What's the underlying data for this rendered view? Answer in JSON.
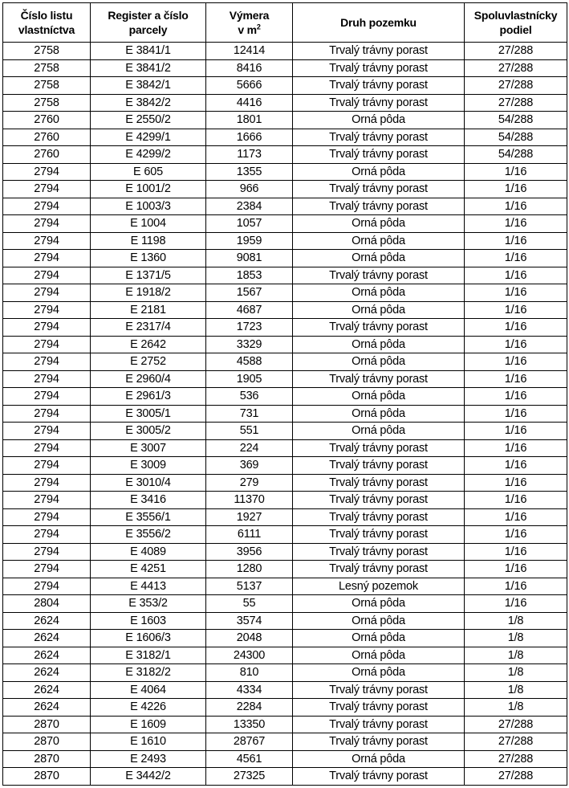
{
  "table": {
    "headers": {
      "c0_line1": "Číslo listu",
      "c0_line2": "vlastníctva",
      "c1_line1": "Register a číslo",
      "c1_line2": "parcely",
      "c2_line1": "Výmera",
      "c2_line2": "v m",
      "c2_sup": "2",
      "c3": "Druh pozemku",
      "c4_line1": "Spoluvlastnícky",
      "c4_line2": "podiel"
    },
    "rows": [
      [
        "2758",
        "E 3841/1",
        "12414",
        "Trvalý trávny porast",
        "27/288"
      ],
      [
        "2758",
        "E 3841/2",
        "8416",
        "Trvalý trávny porast",
        "27/288"
      ],
      [
        "2758",
        "E 3842/1",
        "5666",
        "Trvalý trávny porast",
        "27/288"
      ],
      [
        "2758",
        "E 3842/2",
        "4416",
        "Trvalý trávny porast",
        "27/288"
      ],
      [
        "2760",
        "E 2550/2",
        "1801",
        "Orná pôda",
        "54/288"
      ],
      [
        "2760",
        "E 4299/1",
        "1666",
        "Trvalý trávny porast",
        "54/288"
      ],
      [
        "2760",
        "E 4299/2",
        "1173",
        "Trvalý trávny porast",
        "54/288"
      ],
      [
        "2794",
        "E 605",
        "1355",
        "Orná pôda",
        "1/16"
      ],
      [
        "2794",
        "E 1001/2",
        "966",
        "Trvalý trávny porast",
        "1/16"
      ],
      [
        "2794",
        "E 1003/3",
        "2384",
        "Trvalý trávny porast",
        "1/16"
      ],
      [
        "2794",
        "E 1004",
        "1057",
        "Orná pôda",
        "1/16"
      ],
      [
        "2794",
        "E 1198",
        "1959",
        "Orná pôda",
        "1/16"
      ],
      [
        "2794",
        "E 1360",
        "9081",
        "Orná pôda",
        "1/16"
      ],
      [
        "2794",
        "E 1371/5",
        "1853",
        "Trvalý trávny porast",
        "1/16"
      ],
      [
        "2794",
        "E 1918/2",
        "1567",
        "Orná pôda",
        "1/16"
      ],
      [
        "2794",
        "E 2181",
        "4687",
        "Orná pôda",
        "1/16"
      ],
      [
        "2794",
        "E 2317/4",
        "1723",
        "Trvalý trávny porast",
        "1/16"
      ],
      [
        "2794",
        "E 2642",
        "3329",
        "Orná pôda",
        "1/16"
      ],
      [
        "2794",
        "E 2752",
        "4588",
        "Orná pôda",
        "1/16"
      ],
      [
        "2794",
        "E 2960/4",
        "1905",
        "Trvalý trávny porast",
        "1/16"
      ],
      [
        "2794",
        "E 2961/3",
        "536",
        "Orná pôda",
        "1/16"
      ],
      [
        "2794",
        "E 3005/1",
        "731",
        "Orná pôda",
        "1/16"
      ],
      [
        "2794",
        "E 3005/2",
        "551",
        "Orná pôda",
        "1/16"
      ],
      [
        "2794",
        "E 3007",
        "224",
        "Trvalý trávny porast",
        "1/16"
      ],
      [
        "2794",
        "E 3009",
        "369",
        "Trvalý trávny porast",
        "1/16"
      ],
      [
        "2794",
        "E 3010/4",
        "279",
        "Trvalý trávny porast",
        "1/16"
      ],
      [
        "2794",
        "E 3416",
        "11370",
        "Trvalý trávny porast",
        "1/16"
      ],
      [
        "2794",
        "E 3556/1",
        "1927",
        "Trvalý trávny porast",
        "1/16"
      ],
      [
        "2794",
        "E 3556/2",
        "6111",
        "Trvalý trávny porast",
        "1/16"
      ],
      [
        "2794",
        "E 4089",
        "3956",
        "Trvalý trávny porast",
        "1/16"
      ],
      [
        "2794",
        "E 4251",
        "1280",
        "Trvalý trávny porast",
        "1/16"
      ],
      [
        "2794",
        "E 4413",
        "5137",
        "Lesný pozemok",
        "1/16"
      ],
      [
        "2804",
        "E 353/2",
        "55",
        "Orná pôda",
        "1/16"
      ],
      [
        "2624",
        "E 1603",
        "3574",
        "Orná pôda",
        "1/8"
      ],
      [
        "2624",
        "E 1606/3",
        "2048",
        "Orná pôda",
        "1/8"
      ],
      [
        "2624",
        "E 3182/1",
        "24300",
        "Orná pôda",
        "1/8"
      ],
      [
        "2624",
        "E 3182/2",
        "810",
        "Orná pôda",
        "1/8"
      ],
      [
        "2624",
        "E 4064",
        "4334",
        "Trvalý trávny porast",
        "1/8"
      ],
      [
        "2624",
        "E 4226",
        "2284",
        "Trvalý trávny porast",
        "1/8"
      ],
      [
        "2870",
        "E 1609",
        "13350",
        "Trvalý trávny porast",
        "27/288"
      ],
      [
        "2870",
        "E 1610",
        "28767",
        "Trvalý trávny porast",
        "27/288"
      ],
      [
        "2870",
        "E 2493",
        "4561",
        "Orná pôda",
        "27/288"
      ],
      [
        "2870",
        "E 3442/2",
        "27325",
        "Trvalý trávny porast",
        "27/288"
      ]
    ]
  }
}
